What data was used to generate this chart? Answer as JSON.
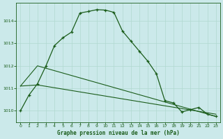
{
  "title": "Graphe pression niveau de la mer (hPa)",
  "background_color": "#cbe9ea",
  "grid_color": "#b0d8d0",
  "line_color": "#1a5c1a",
  "xlim": [
    -0.5,
    23.5
  ],
  "ylim": [
    1009.5,
    1014.8
  ],
  "yticks": [
    1010,
    1011,
    1012,
    1013,
    1014
  ],
  "xticks": [
    0,
    1,
    2,
    3,
    4,
    5,
    6,
    7,
    8,
    9,
    10,
    11,
    12,
    13,
    14,
    15,
    16,
    17,
    18,
    19,
    20,
    21,
    22,
    23
  ],
  "line1_x": [
    0,
    1,
    2,
    3,
    4,
    5,
    6,
    7,
    8,
    9,
    10,
    11,
    12,
    13,
    14,
    15,
    16,
    17,
    18,
    19,
    20,
    21,
    22,
    23
  ],
  "line1_y": [
    1010.0,
    1010.7,
    1011.2,
    1012.0,
    1012.9,
    1013.25,
    1013.5,
    1014.35,
    1014.42,
    1014.5,
    1014.48,
    1014.38,
    1013.55,
    1013.1,
    1012.65,
    1012.2,
    1011.65,
    1010.45,
    1010.35,
    1009.95,
    1010.05,
    1010.15,
    1009.85,
    1009.75
  ],
  "line2_x": [
    0,
    2,
    23
  ],
  "line2_y": [
    1011.1,
    1012.0,
    1009.75
  ],
  "line3_x": [
    0,
    2,
    23
  ],
  "line3_y": [
    1011.1,
    1011.15,
    1009.85
  ]
}
